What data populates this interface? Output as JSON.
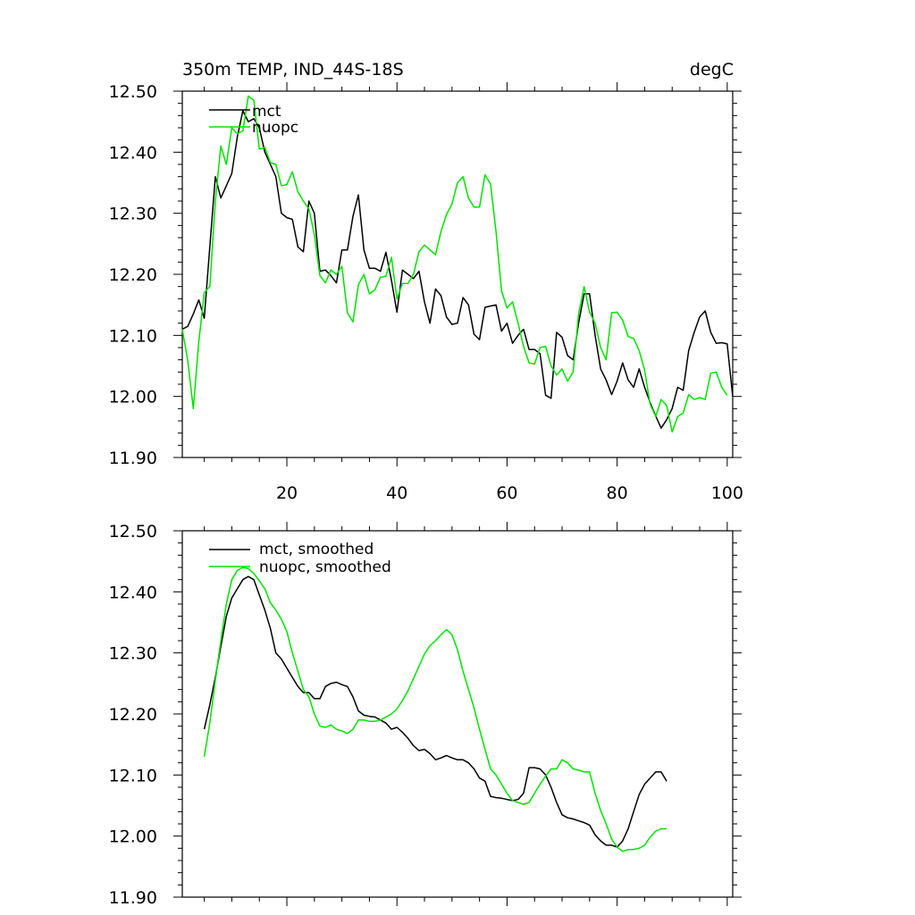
{
  "title_left": "350m TEMP, IND_44S-18S",
  "title_right": "degC",
  "chart_data": [
    {
      "type": "line",
      "xlim": [
        1,
        101
      ],
      "ylim": [
        11.9,
        12.5
      ],
      "xticks": [
        20,
        40,
        60,
        80,
        100
      ],
      "yticks": [
        11.9,
        12.0,
        12.1,
        12.2,
        12.3,
        12.4,
        12.5
      ],
      "ytick_labels": [
        "11.90",
        "12.00",
        "12.10",
        "12.20",
        "12.30",
        "12.40",
        "12.50"
      ],
      "xtick_labels": [
        "20",
        "40",
        "60",
        "80",
        "100"
      ],
      "series": [
        {
          "name": "mct",
          "color": "#000000",
          "x_start": 1,
          "values": [
            12.11,
            12.115,
            12.135,
            12.158,
            12.128,
            12.245,
            12.36,
            12.325,
            12.345,
            12.365,
            12.425,
            12.468,
            12.45,
            12.455,
            12.44,
            12.4,
            12.38,
            12.36,
            12.3,
            12.293,
            12.29,
            12.245,
            12.237,
            12.32,
            12.3,
            12.205,
            12.207,
            12.198,
            12.186,
            12.24,
            12.24,
            12.295,
            12.33,
            12.24,
            12.21,
            12.21,
            12.205,
            12.236,
            12.19,
            12.138,
            12.207,
            12.2,
            12.193,
            12.205,
            12.155,
            12.12,
            12.176,
            12.165,
            12.13,
            12.118,
            12.12,
            12.162,
            12.15,
            12.102,
            12.093,
            12.146,
            12.148,
            12.15,
            12.107,
            12.12,
            12.087,
            12.1,
            12.11,
            12.077,
            12.077,
            12.07,
            12.002,
            11.997,
            12.105,
            12.097,
            12.067,
            12.06,
            12.12,
            12.168,
            12.168,
            12.1,
            12.045,
            12.027,
            12.003,
            12.025,
            12.055,
            12.027,
            12.015,
            12.045,
            12.015,
            11.99,
            11.968,
            11.948,
            11.962,
            11.98,
            12.015,
            12.01,
            12.075,
            12.105,
            12.13,
            12.14,
            12.105,
            12.087,
            12.088,
            12.086,
            12.0
          ]
        },
        {
          "name": "nuopc",
          "color": "#00e400",
          "x_start": 1,
          "values": [
            12.11,
            12.058,
            11.98,
            12.09,
            12.17,
            12.18,
            12.32,
            12.41,
            12.38,
            12.44,
            12.43,
            12.435,
            12.492,
            12.485,
            12.405,
            12.408,
            12.383,
            12.38,
            12.345,
            12.347,
            12.368,
            12.335,
            12.32,
            12.307,
            12.265,
            12.198,
            12.186,
            12.207,
            12.2,
            12.213,
            12.137,
            12.122,
            12.183,
            12.2,
            12.168,
            12.175,
            12.195,
            12.197,
            12.228,
            12.16,
            12.185,
            12.185,
            12.2,
            12.237,
            12.248,
            12.24,
            12.232,
            12.27,
            12.298,
            12.315,
            12.35,
            12.36,
            12.325,
            12.31,
            12.31,
            12.363,
            12.348,
            12.27,
            12.173,
            12.145,
            12.155,
            12.12,
            12.082,
            12.055,
            12.053,
            12.08,
            12.082,
            12.05,
            12.035,
            12.045,
            12.025,
            12.04,
            12.135,
            12.18,
            12.138,
            12.12,
            12.08,
            12.06,
            12.137,
            12.138,
            12.125,
            12.098,
            12.095,
            12.075,
            12.043,
            11.987,
            11.967,
            11.995,
            11.985,
            11.942,
            11.967,
            11.973,
            12.003,
            11.995,
            11.998,
            11.995,
            12.038,
            12.04,
            12.015,
            12.002
          ]
        }
      ]
    },
    {
      "type": "line",
      "xlim": [
        1,
        101
      ],
      "ylim": [
        11.9,
        12.5
      ],
      "xticks": [
        20,
        40,
        60,
        80,
        100
      ],
      "yticks": [
        11.9,
        12.0,
        12.1,
        12.2,
        12.3,
        12.4,
        12.5
      ],
      "ytick_labels": [
        "11.90",
        "12.00",
        "12.10",
        "12.20",
        "12.30",
        "12.40",
        "12.50"
      ],
      "series": [
        {
          "name": "mct, smoothed",
          "color": "#000000",
          "x_start": 5,
          "values": [
            12.175,
            12.215,
            12.26,
            12.31,
            12.36,
            12.39,
            12.405,
            12.42,
            12.425,
            12.42,
            12.395,
            12.37,
            12.34,
            12.3,
            12.29,
            12.275,
            12.26,
            12.245,
            12.235,
            12.235,
            12.225,
            12.225,
            12.245,
            12.25,
            12.252,
            12.248,
            12.245,
            12.228,
            12.205,
            12.198,
            12.196,
            12.195,
            12.19,
            12.185,
            12.175,
            12.178,
            12.17,
            12.16,
            12.148,
            12.14,
            12.142,
            12.135,
            12.125,
            12.128,
            12.132,
            12.128,
            12.125,
            12.125,
            12.12,
            12.11,
            12.095,
            12.09,
            12.065,
            12.063,
            12.062,
            12.06,
            12.058,
            12.06,
            12.07,
            12.112,
            12.112,
            12.11,
            12.1,
            12.08,
            12.055,
            12.035,
            12.03,
            12.028,
            12.025,
            12.022,
            12.018,
            12.002,
            11.992,
            11.985,
            11.985,
            11.982,
            11.992,
            12.012,
            12.04,
            12.068,
            12.085,
            12.095,
            12.105,
            12.105,
            12.09
          ]
        },
        {
          "name": "nuopc, smoothed",
          "color": "#00e400",
          "x_start": 5,
          "values": [
            12.13,
            12.185,
            12.255,
            12.32,
            12.38,
            12.42,
            12.435,
            12.44,
            12.438,
            12.43,
            12.418,
            12.405,
            12.382,
            12.37,
            12.355,
            12.335,
            12.3,
            12.27,
            12.24,
            12.228,
            12.2,
            12.18,
            12.178,
            12.182,
            12.175,
            12.172,
            12.168,
            12.175,
            12.19,
            12.19,
            12.188,
            12.188,
            12.19,
            12.195,
            12.2,
            12.208,
            12.222,
            12.238,
            12.258,
            12.278,
            12.298,
            12.312,
            12.32,
            12.33,
            12.338,
            12.33,
            12.305,
            12.27,
            12.24,
            12.21,
            12.175,
            12.142,
            12.11,
            12.1,
            12.085,
            12.07,
            12.058,
            12.055,
            12.052,
            12.055,
            12.07,
            12.085,
            12.098,
            12.11,
            12.11,
            12.125,
            12.12,
            12.11,
            12.108,
            12.105,
            12.105,
            12.07,
            12.042,
            12.02,
            11.995,
            11.982,
            11.975,
            11.978,
            11.978,
            11.98,
            11.985,
            11.998,
            12.008,
            12.012,
            12.012
          ]
        }
      ]
    }
  ]
}
